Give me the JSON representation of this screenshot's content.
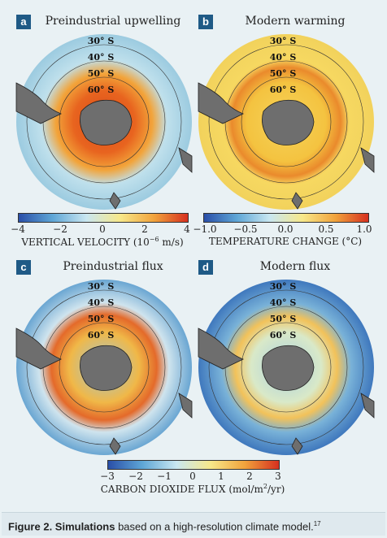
{
  "panels": [
    {
      "label": "a",
      "title": "Preindustrial upwelling"
    },
    {
      "label": "b",
      "title": "Modern warming"
    },
    {
      "label": "c",
      "title": "Preindustrial flux"
    },
    {
      "label": "d",
      "title": "Modern flux"
    }
  ],
  "latitudes": [
    "30° S",
    "40° S",
    "50° S",
    "60° S"
  ],
  "colorbars": {
    "velocity": {
      "ticks": [
        "−4",
        "−2",
        "0",
        "2",
        "4"
      ],
      "label": "VERTICAL VELOCITY (10",
      "label_sup": "−6",
      "label_end": " m/s)",
      "range": [
        -4,
        4
      ]
    },
    "temperature": {
      "ticks": [
        "−1.0",
        "−0.5",
        "0.0",
        "0.5",
        "1.0"
      ],
      "label": "TEMPERATURE CHANGE (°C)",
      "range": [
        -1.0,
        1.0
      ]
    },
    "flux": {
      "ticks": [
        "−3",
        "−2",
        "−1",
        "0",
        "1",
        "2",
        "3"
      ],
      "label": "CARBON DIOXIDE FLUX (mol/m",
      "label_sup": "2",
      "label_end": "/yr)",
      "range": [
        -3,
        3
      ]
    }
  },
  "caption": {
    "bold": "Figure 2. Simulations",
    "text": " based on a high-resolution climate model.",
    "ref": "17"
  },
  "colors": {
    "label_bg": "#1f5a86",
    "land": "#6e6e6e",
    "background": "#e9f1f4"
  }
}
